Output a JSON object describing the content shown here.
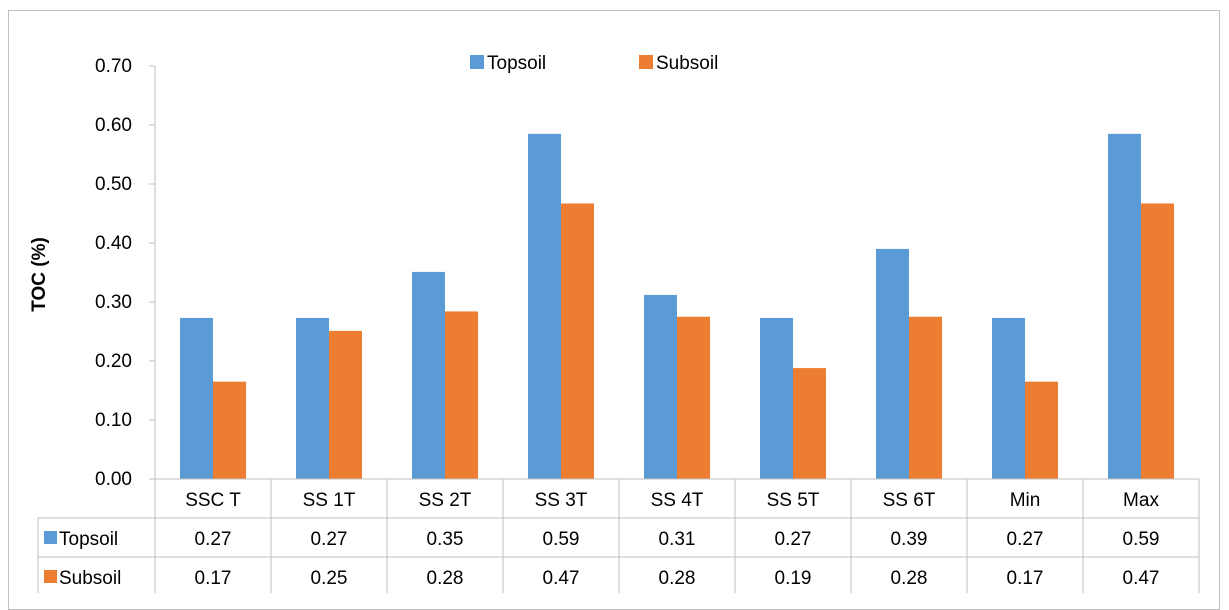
{
  "chart_data": {
    "type": "bar",
    "categories": [
      "SSC T",
      "SS 1T",
      "SS 2T",
      "SS 3T",
      "SS 4T",
      "SS 5T",
      "SS 6T",
      "Min",
      "Max"
    ],
    "series": [
      {
        "name": "Topsoil",
        "color": "#5b9bd5",
        "values": [
          0.273,
          0.273,
          0.351,
          0.585,
          0.312,
          0.273,
          0.39,
          0.273,
          0.585
        ],
        "labels": [
          "0.27",
          "0.27",
          "0.35",
          "0.59",
          "0.31",
          "0.27",
          "0.39",
          "0.27",
          "0.59"
        ]
      },
      {
        "name": "Subsoil",
        "color": "#ed7d31",
        "values": [
          0.165,
          0.251,
          0.284,
          0.467,
          0.275,
          0.188,
          0.275,
          0.165,
          0.467
        ],
        "labels": [
          "0.17",
          "0.25",
          "0.28",
          "0.47",
          "0.28",
          "0.19",
          "0.28",
          "0.17",
          "0.47"
        ]
      }
    ],
    "ylabel": "TOC (%)",
    "ylim": [
      0,
      0.7
    ],
    "yticks": [
      "0.00",
      "0.10",
      "0.20",
      "0.30",
      "0.40",
      "0.50",
      "0.60",
      "0.70"
    ],
    "grid": false,
    "legend": "top-center",
    "data_table": true
  }
}
